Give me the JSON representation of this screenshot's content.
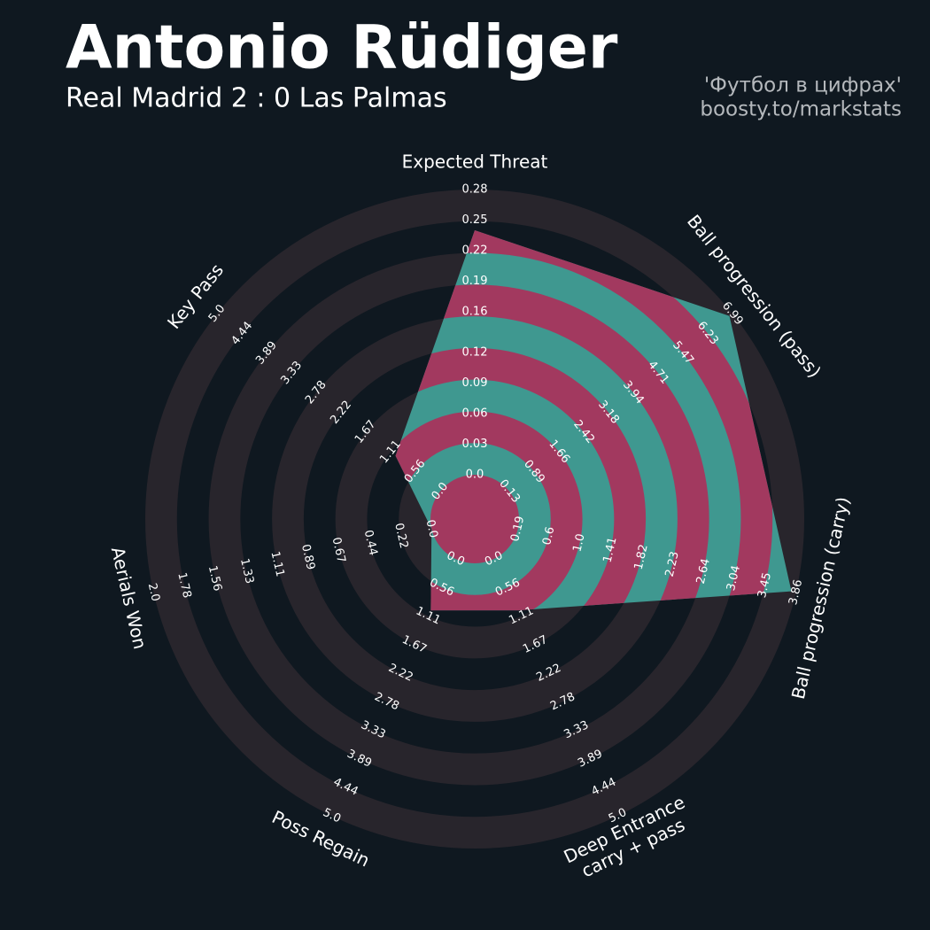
{
  "chart_data": {
    "type": "radar",
    "title": "Antonio Rüdiger",
    "subtitle": "Real Madrid 2 : 0 Las Palmas",
    "credits": [
      "'Футбол в цифрах'",
      "boosty.to/markstats"
    ],
    "categories": [
      "Expected Threat",
      "Ball progression (pass)",
      "Ball progression (carry)",
      [
        "Deep Entrance",
        "carry + pass"
      ],
      "Poss Regain",
      "Aerials Won",
      "Key Pass"
    ],
    "values": [
      0.24,
      6.9,
      3.8,
      1,
      1,
      0,
      1
    ],
    "color": "#3f9890",
    "alt_color": "#a2395f",
    "ring_color": "#28252c",
    "axes": [
      {
        "lim": [
          0,
          0.28
        ],
        "ticks": [
          {
            "value": 0,
            "label": "0.0"
          },
          0.03,
          0.06,
          0.09,
          0.12,
          0.16,
          0.19,
          0.22,
          0.25,
          0.28
        ]
      },
      {
        "lim": [
          0.13,
          6.99
        ],
        "ticks": [
          0.13,
          0.89,
          1.66,
          2.42,
          3.18,
          3.94,
          4.71,
          5.47,
          6.23,
          6.99
        ]
      },
      {
        "lim": [
          0.19,
          3.86
        ],
        "ticks": [
          0.19,
          0.6,
          {
            "value": 1,
            "label": "1.0"
          },
          1.41,
          1.82,
          2.23,
          2.64,
          3.04,
          3.45,
          3.86
        ]
      },
      {
        "lim": [
          0,
          5
        ],
        "ticks": [
          {
            "value": 0,
            "label": "0.0"
          },
          0.56,
          1.11,
          1.67,
          2.22,
          2.78,
          3.33,
          3.89,
          4.44,
          {
            "value": 5,
            "label": "5.0"
          }
        ]
      },
      {
        "lim": [
          0,
          5
        ],
        "ticks": [
          {
            "value": 0,
            "label": "0.0"
          },
          0.56,
          1.11,
          1.67,
          2.22,
          2.78,
          3.33,
          3.89,
          4.44,
          {
            "value": 5,
            "label": "5.0"
          }
        ]
      },
      {
        "lim": [
          0,
          2
        ],
        "ticks": [
          {
            "value": 0,
            "label": "0.0"
          },
          0.22,
          0.44,
          0.67,
          0.89,
          1.11,
          1.33,
          1.56,
          1.78,
          {
            "value": 2,
            "label": "2.0"
          }
        ]
      },
      {
        "lim": [
          0,
          5
        ],
        "ticks": [
          {
            "value": 0,
            "label": "0.0"
          },
          0.56,
          1.11,
          1.67,
          2.22,
          2.78,
          3.33,
          3.89,
          4.44,
          {
            "value": 5,
            "label": "5.0"
          }
        ]
      }
    ]
  }
}
